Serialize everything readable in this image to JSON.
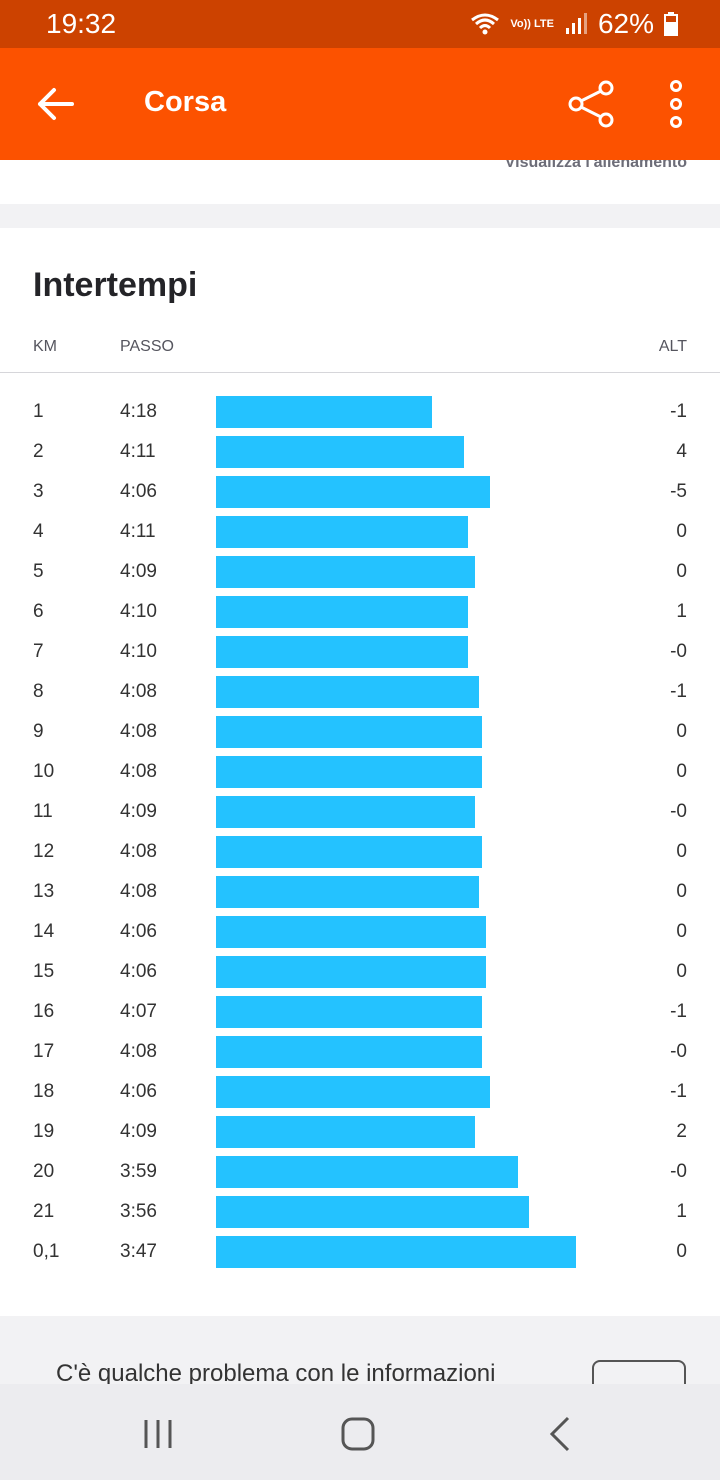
{
  "status": {
    "time": "19:32",
    "network": "Vo)) LTE",
    "battery": "62%"
  },
  "appbar": {
    "title": "Corsa",
    "back_icon": "arrow-back-icon",
    "share_icon": "share-icon",
    "more_icon": "more-vertical-icon"
  },
  "top_card": {
    "link": "Visualizza l'allenamento"
  },
  "splits": {
    "title": "Intertempi",
    "headers": {
      "km": "KM",
      "pace": "PASSO",
      "alt": "ALT"
    },
    "bar_color": "#24c2ff",
    "rows": [
      {
        "km": "1",
        "pace": "4:18",
        "alt": "-1",
        "bar_fraction": 0.6
      },
      {
        "km": "2",
        "pace": "4:11",
        "alt": "4",
        "bar_fraction": 0.69
      },
      {
        "km": "3",
        "pace": "4:06",
        "alt": "-5",
        "bar_fraction": 0.76
      },
      {
        "km": "4",
        "pace": "4:11",
        "alt": "0",
        "bar_fraction": 0.7
      },
      {
        "km": "5",
        "pace": "4:09",
        "alt": "0",
        "bar_fraction": 0.72
      },
      {
        "km": "6",
        "pace": "4:10",
        "alt": "1",
        "bar_fraction": 0.7
      },
      {
        "km": "7",
        "pace": "4:10",
        "alt": "-0",
        "bar_fraction": 0.7
      },
      {
        "km": "8",
        "pace": "4:08",
        "alt": "-1",
        "bar_fraction": 0.73
      },
      {
        "km": "9",
        "pace": "4:08",
        "alt": "0",
        "bar_fraction": 0.74
      },
      {
        "km": "10",
        "pace": "4:08",
        "alt": "0",
        "bar_fraction": 0.74
      },
      {
        "km": "11",
        "pace": "4:09",
        "alt": "-0",
        "bar_fraction": 0.72
      },
      {
        "km": "12",
        "pace": "4:08",
        "alt": "0",
        "bar_fraction": 0.74
      },
      {
        "km": "13",
        "pace": "4:08",
        "alt": "0",
        "bar_fraction": 0.73
      },
      {
        "km": "14",
        "pace": "4:06",
        "alt": "0",
        "bar_fraction": 0.75
      },
      {
        "km": "15",
        "pace": "4:06",
        "alt": "0",
        "bar_fraction": 0.75
      },
      {
        "km": "16",
        "pace": "4:07",
        "alt": "-1",
        "bar_fraction": 0.74
      },
      {
        "km": "17",
        "pace": "4:08",
        "alt": "-0",
        "bar_fraction": 0.74
      },
      {
        "km": "18",
        "pace": "4:06",
        "alt": "-1",
        "bar_fraction": 0.76
      },
      {
        "km": "19",
        "pace": "4:09",
        "alt": "2",
        "bar_fraction": 0.72
      },
      {
        "km": "20",
        "pace": "3:59",
        "alt": "-0",
        "bar_fraction": 0.84
      },
      {
        "km": "21",
        "pace": "3:56",
        "alt": "1",
        "bar_fraction": 0.87
      },
      {
        "km": "0,1",
        "pace": "3:47",
        "alt": "0",
        "bar_fraction": 1.0
      }
    ]
  },
  "feedback": {
    "text": "C'è qualche problema con le informazioni"
  },
  "navbar": {
    "recents_icon": "recents-icon",
    "home_icon": "home-icon",
    "back_icon": "nav-back-icon"
  }
}
